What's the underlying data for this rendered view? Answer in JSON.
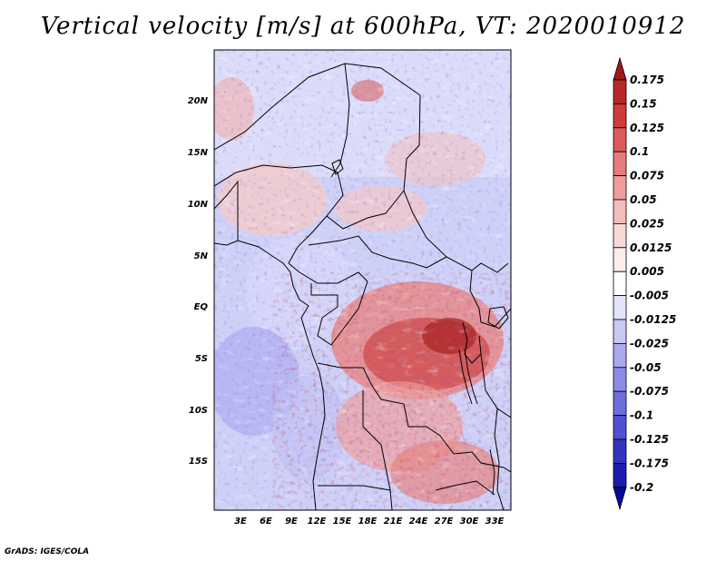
{
  "title": "Vertical velocity [m/s] at 600hPa, VT: 2020010912",
  "credit": "GrADS: IGES/COLA",
  "map": {
    "lon_range": [
      0,
      35
    ],
    "lat_range": [
      -20,
      25
    ],
    "lon_ticks": [
      "3E",
      "6E",
      "9E",
      "12E",
      "15E",
      "18E",
      "21E",
      "24E",
      "27E",
      "30E",
      "33E"
    ],
    "lat_ticks": [
      "20N",
      "15N",
      "10N",
      "5N",
      "EQ",
      "5S",
      "10S",
      "15S"
    ]
  },
  "colorbar": {
    "labels": [
      "0.175",
      "0.15",
      "0.125",
      "0.1",
      "0.075",
      "0.05",
      "0.025",
      "0.0125",
      "0.005",
      "-0.005",
      "-0.0125",
      "-0.025",
      "-0.05",
      "-0.075",
      "-0.1",
      "-0.125",
      "-0.175",
      "-0.2"
    ],
    "colors": [
      "#a01818",
      "#b82828",
      "#cc3c3c",
      "#dc5a5a",
      "#e77c7c",
      "#ef9c9c",
      "#f5bcbc",
      "#f9d8d8",
      "#fcecec",
      "#ffffff",
      "#e3e3fa",
      "#c8c8f5",
      "#aaaaf0",
      "#8c8ce8",
      "#6e6edf",
      "#5050d2",
      "#3333c0",
      "#1c1cac",
      "#0a0a96"
    ]
  },
  "colors": {
    "land_border": "#000000",
    "frame": "#000000"
  }
}
